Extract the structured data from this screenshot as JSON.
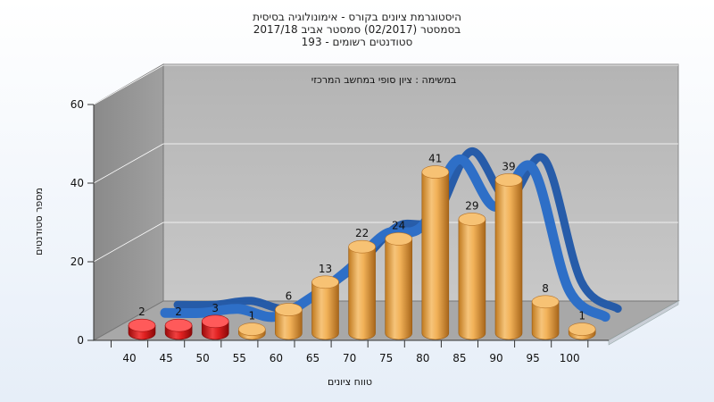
{
  "chart_data": {
    "type": "bar",
    "title_lines": [
      "היסטוגרמת ציונים בקורס - אימונולוגיה בסיסית",
      "בסמסטר  (02/2017)  סמסטר אביב 2017/18",
      "193 - סטודנטים רשומים"
    ],
    "annotation": "במשימה : ציון סופי במחשב המרכזי",
    "xlabel": "טווח ציונים",
    "ylabel": "מספר סטודנטים",
    "ylim": [
      0,
      60
    ],
    "yticks": [
      "0",
      "20",
      "40",
      "60"
    ],
    "categories": [
      "40",
      "45",
      "50",
      "55",
      "60",
      "65",
      "70",
      "75",
      "80",
      "85",
      "90",
      "95",
      "100"
    ],
    "values": [
      2,
      2,
      3,
      1,
      6,
      13,
      22,
      24,
      41,
      29,
      39,
      8,
      1
    ],
    "bar_colors": [
      "#d81818",
      "#d81818",
      "#d81818",
      "#e8a040",
      "#e8a040",
      "#e8a040",
      "#e8a040",
      "#e8a040",
      "#e8a040",
      "#e8a040",
      "#e8a040",
      "#e8a040",
      "#e8a040"
    ],
    "curve_color": "#2e6fc7",
    "grid": true
  }
}
